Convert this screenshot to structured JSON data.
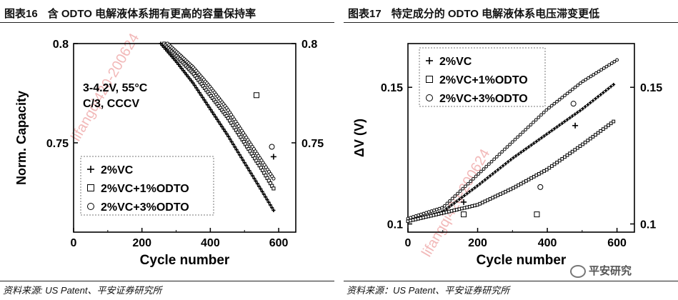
{
  "figures": [
    {
      "fig_label": "图表16",
      "heading": "含 ODTO 电解液体系拥有更高的容量保持率",
      "source": "资料来源: US Patent、平安证券研究所"
    },
    {
      "fig_label": "图表17",
      "heading": "特定成分的 ODTO 电解液体系电压滞变更低",
      "source": "资料来源：US Patent、平安证券研究所"
    }
  ],
  "watermark": "lifangqi420-200624",
  "logo_text": "平安研究",
  "chart_data": [
    {
      "type": "scatter",
      "title": "含 ODTO 电解液体系拥有更高的容量保持率",
      "xlabel": "Cycle number",
      "ylabel": "Norm. Capacity",
      "xlim": [
        0,
        650
      ],
      "ylim": [
        0.705,
        0.8
      ],
      "xticks": [
        0,
        200,
        400,
        600
      ],
      "yticks": [
        0.75,
        0.8
      ],
      "ytick_labels": [
        "0.75",
        "0.8"
      ],
      "annotation": [
        "3-4.2V, 55°C",
        "C/3, CCCV"
      ],
      "legend": "bottom-left",
      "series": [
        {
          "name": "2%VC",
          "marker": "plus",
          "x": [
            255,
            300,
            350,
            400,
            450,
            500,
            550,
            585
          ],
          "y": [
            0.8,
            0.791,
            0.78,
            0.767,
            0.754,
            0.74,
            0.726,
            0.716
          ],
          "legend_point": {
            "x": 585,
            "y": 0.743
          }
        },
        {
          "name": "2%VC+1%ODTO",
          "marker": "square",
          "x": [
            265,
            300,
            350,
            400,
            450,
            500,
            550,
            585
          ],
          "y": [
            0.8,
            0.794,
            0.785,
            0.774,
            0.763,
            0.75,
            0.737,
            0.727
          ],
          "legend_point": {
            "x": 535,
            "y": 0.774
          }
        },
        {
          "name": "2%VC+3%ODTO",
          "marker": "circle",
          "x": [
            275,
            300,
            350,
            400,
            450,
            500,
            550,
            585
          ],
          "y": [
            0.8,
            0.796,
            0.788,
            0.778,
            0.767,
            0.754,
            0.741,
            0.732
          ],
          "legend_point": {
            "x": 580,
            "y": 0.748
          }
        }
      ]
    },
    {
      "type": "scatter",
      "title": "特定成分的 ODTO 电解液体系电压滞变更低",
      "xlabel": "Cycle number",
      "ylabel": "ΔV (V)",
      "xlim": [
        0,
        650
      ],
      "ylim": [
        0.097,
        0.166
      ],
      "xticks": [
        0,
        200,
        400,
        600
      ],
      "yticks": [
        0.1,
        0.15
      ],
      "ytick_labels": [
        "0.1",
        "0.15"
      ],
      "legend": "top-left",
      "series": [
        {
          "name": "2%VC",
          "marker": "plus",
          "x": [
            0,
            100,
            200,
            300,
            400,
            500,
            590
          ],
          "y": [
            0.101,
            0.1045,
            0.114,
            0.124,
            0.133,
            0.142,
            0.151
          ],
          "legend_point": {
            "x": 160,
            "y": 0.108
          }
        },
        {
          "name": "2%VC+1%ODTO",
          "marker": "square",
          "x": [
            0,
            100,
            200,
            300,
            400,
            500,
            590
          ],
          "y": [
            0.101,
            0.104,
            0.107,
            0.113,
            0.12,
            0.129,
            0.1375
          ],
          "legend_point": {
            "x": 160,
            "y": 0.1035
          }
        },
        {
          "name": "2%VC+3%ODTO",
          "marker": "circle",
          "x": [
            0,
            100,
            200,
            300,
            400,
            500,
            600
          ],
          "y": [
            0.102,
            0.106,
            0.118,
            0.13,
            0.142,
            0.152,
            0.16
          ],
          "legend_point": {
            "x": 380,
            "y": 0.1135
          }
        }
      ],
      "stray_markers": [
        {
          "marker": "plus",
          "x": 480,
          "y": 0.136
        },
        {
          "marker": "square",
          "x": 370,
          "y": 0.1035
        },
        {
          "marker": "circle",
          "x": 475,
          "y": 0.144
        }
      ]
    }
  ]
}
